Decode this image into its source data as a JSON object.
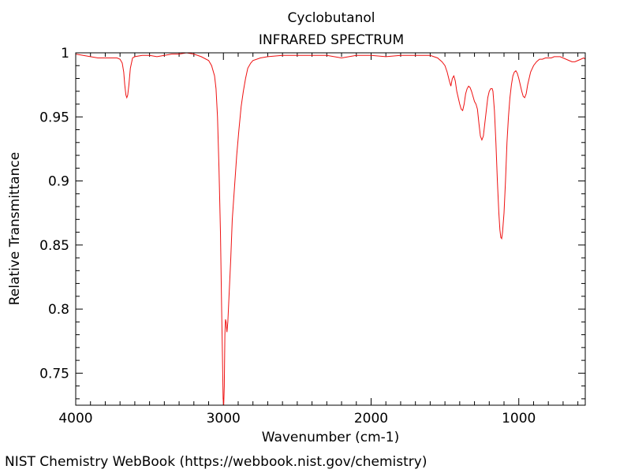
{
  "chart_data": {
    "type": "line",
    "title": "Cyclobutanol",
    "subtitle": "INFRARED SPECTRUM",
    "xlabel": "Wavenumber (cm-1)",
    "ylabel": "Relative Transmittance",
    "xlim": [
      4000,
      550
    ],
    "ylim": [
      0.725,
      1.0
    ],
    "x_ticks": [
      4000,
      3000,
      2000,
      1000
    ],
    "x_tick_labels": [
      "4000",
      "3000",
      "2000",
      "1000"
    ],
    "y_ticks": [
      1.0,
      0.95,
      0.9,
      0.85,
      0.8,
      0.75
    ],
    "y_tick_labels": [
      "1",
      "0.95",
      "0.9",
      "0.85",
      "0.8",
      "0.75"
    ],
    "grid": false,
    "series": [
      {
        "color": "#ee1111",
        "points": [
          [
            4000,
            0.999
          ],
          [
            3950,
            0.998
          ],
          [
            3900,
            0.997
          ],
          [
            3850,
            0.996
          ],
          [
            3800,
            0.996
          ],
          [
            3750,
            0.996
          ],
          [
            3720,
            0.996
          ],
          [
            3700,
            0.995
          ],
          [
            3685,
            0.992
          ],
          [
            3675,
            0.985
          ],
          [
            3668,
            0.975
          ],
          [
            3660,
            0.967
          ],
          [
            3654,
            0.965
          ],
          [
            3648,
            0.967
          ],
          [
            3640,
            0.975
          ],
          [
            3630,
            0.988
          ],
          [
            3615,
            0.996
          ],
          [
            3600,
            0.997
          ],
          [
            3550,
            0.998
          ],
          [
            3500,
            0.998
          ],
          [
            3450,
            0.997
          ],
          [
            3400,
            0.998
          ],
          [
            3350,
            0.999
          ],
          [
            3300,
            0.999
          ],
          [
            3250,
            1.0
          ],
          [
            3200,
            0.999
          ],
          [
            3150,
            0.997
          ],
          [
            3100,
            0.994
          ],
          [
            3080,
            0.99
          ],
          [
            3060,
            0.982
          ],
          [
            3050,
            0.972
          ],
          [
            3040,
            0.95
          ],
          [
            3030,
            0.91
          ],
          [
            3020,
            0.86
          ],
          [
            3012,
            0.8
          ],
          [
            3006,
            0.76
          ],
          [
            3002,
            0.73
          ],
          [
            2998,
            0.725
          ],
          [
            2994,
            0.74
          ],
          [
            2990,
            0.78
          ],
          [
            2986,
            0.792
          ],
          [
            2982,
            0.79
          ],
          [
            2976,
            0.782
          ],
          [
            2970,
            0.79
          ],
          [
            2962,
            0.81
          ],
          [
            2950,
            0.84
          ],
          [
            2940,
            0.87
          ],
          [
            2925,
            0.895
          ],
          [
            2910,
            0.92
          ],
          [
            2895,
            0.94
          ],
          [
            2880,
            0.958
          ],
          [
            2865,
            0.97
          ],
          [
            2850,
            0.98
          ],
          [
            2835,
            0.988
          ],
          [
            2815,
            0.992
          ],
          [
            2800,
            0.994
          ],
          [
            2750,
            0.996
          ],
          [
            2700,
            0.997
          ],
          [
            2600,
            0.998
          ],
          [
            2500,
            0.998
          ],
          [
            2400,
            0.998
          ],
          [
            2300,
            0.998
          ],
          [
            2200,
            0.996
          ],
          [
            2100,
            0.998
          ],
          [
            2000,
            0.998
          ],
          [
            1900,
            0.997
          ],
          [
            1800,
            0.998
          ],
          [
            1700,
            0.998
          ],
          [
            1600,
            0.998
          ],
          [
            1550,
            0.996
          ],
          [
            1520,
            0.993
          ],
          [
            1500,
            0.99
          ],
          [
            1485,
            0.985
          ],
          [
            1470,
            0.978
          ],
          [
            1460,
            0.974
          ],
          [
            1450,
            0.98
          ],
          [
            1440,
            0.982
          ],
          [
            1430,
            0.978
          ],
          [
            1420,
            0.97
          ],
          [
            1410,
            0.965
          ],
          [
            1400,
            0.96
          ],
          [
            1390,
            0.956
          ],
          [
            1380,
            0.955
          ],
          [
            1370,
            0.96
          ],
          [
            1360,
            0.968
          ],
          [
            1350,
            0.972
          ],
          [
            1340,
            0.974
          ],
          [
            1330,
            0.973
          ],
          [
            1320,
            0.97
          ],
          [
            1310,
            0.966
          ],
          [
            1300,
            0.962
          ],
          [
            1290,
            0.96
          ],
          [
            1280,
            0.956
          ],
          [
            1270,
            0.945
          ],
          [
            1260,
            0.935
          ],
          [
            1250,
            0.932
          ],
          [
            1240,
            0.935
          ],
          [
            1230,
            0.945
          ],
          [
            1220,
            0.955
          ],
          [
            1210,
            0.965
          ],
          [
            1200,
            0.97
          ],
          [
            1190,
            0.972
          ],
          [
            1180,
            0.972
          ],
          [
            1175,
            0.97
          ],
          [
            1165,
            0.955
          ],
          [
            1155,
            0.93
          ],
          [
            1145,
            0.9
          ],
          [
            1135,
            0.875
          ],
          [
            1128,
            0.862
          ],
          [
            1122,
            0.856
          ],
          [
            1116,
            0.855
          ],
          [
            1110,
            0.86
          ],
          [
            1100,
            0.875
          ],
          [
            1090,
            0.9
          ],
          [
            1080,
            0.93
          ],
          [
            1070,
            0.95
          ],
          [
            1060,
            0.965
          ],
          [
            1050,
            0.975
          ],
          [
            1040,
            0.982
          ],
          [
            1030,
            0.985
          ],
          [
            1020,
            0.986
          ],
          [
            1010,
            0.984
          ],
          [
            1000,
            0.98
          ],
          [
            990,
            0.975
          ],
          [
            980,
            0.97
          ],
          [
            970,
            0.966
          ],
          [
            960,
            0.965
          ],
          [
            950,
            0.968
          ],
          [
            940,
            0.975
          ],
          [
            930,
            0.98
          ],
          [
            920,
            0.985
          ],
          [
            900,
            0.99
          ],
          [
            880,
            0.993
          ],
          [
            860,
            0.995
          ],
          [
            840,
            0.995
          ],
          [
            820,
            0.996
          ],
          [
            800,
            0.996
          ],
          [
            780,
            0.996
          ],
          [
            760,
            0.997
          ],
          [
            740,
            0.997
          ],
          [
            720,
            0.997
          ],
          [
            700,
            0.996
          ],
          [
            680,
            0.995
          ],
          [
            660,
            0.994
          ],
          [
            640,
            0.993
          ],
          [
            620,
            0.993
          ],
          [
            600,
            0.994
          ],
          [
            580,
            0.995
          ],
          [
            560,
            0.996
          ],
          [
            550,
            0.995
          ]
        ]
      }
    ]
  },
  "footer": {
    "source": "NIST Chemistry WebBook (https://webbook.nist.gov/chemistry)"
  }
}
